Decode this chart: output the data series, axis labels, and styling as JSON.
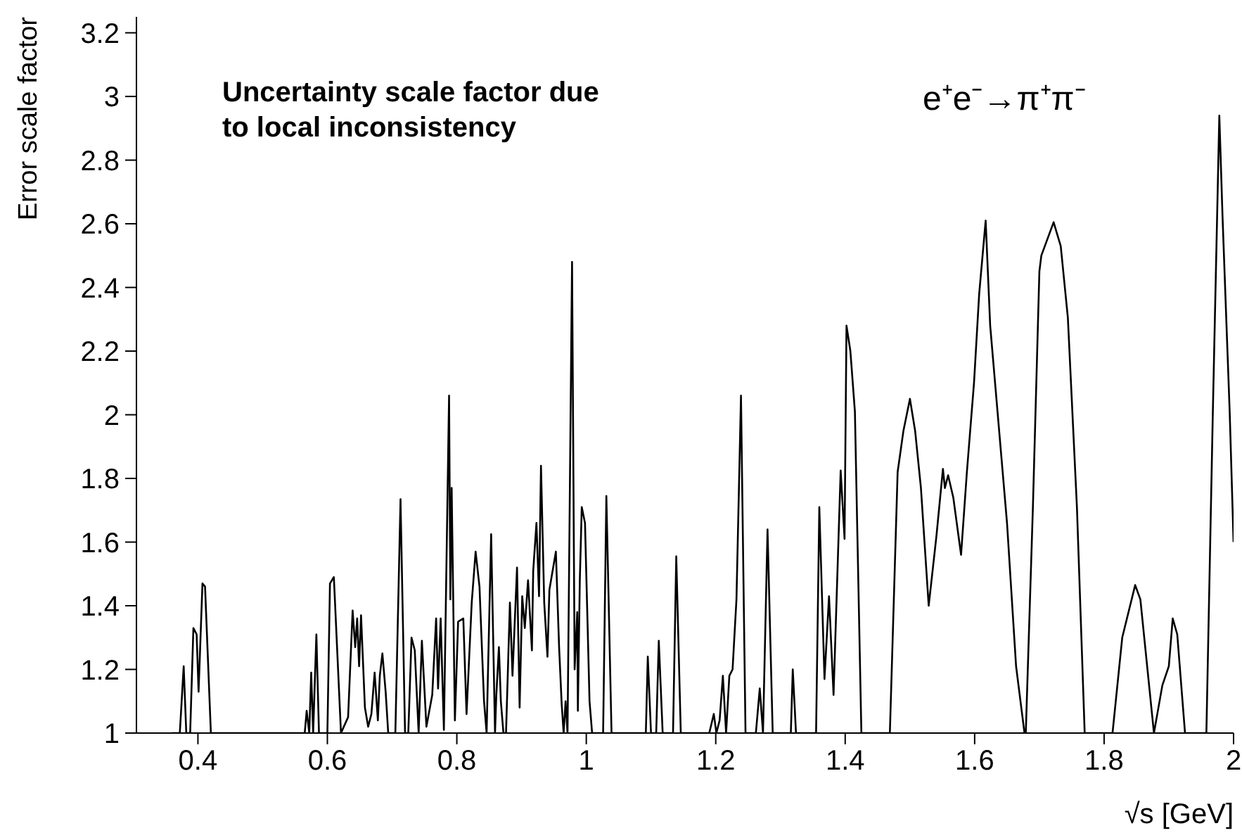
{
  "chart_data": {
    "type": "line",
    "xlabel": "√s   [GeV]",
    "ylabel": "Error scale factor",
    "annotations": [
      "Uncertainty scale factor due to local inconsistency",
      "e⁺e⁻→π⁺π⁻"
    ],
    "x": [
      0.36,
      0.372,
      0.378,
      0.382,
      0.388,
      0.393,
      0.398,
      0.401,
      0.407,
      0.411,
      0.42,
      0.565,
      0.568,
      0.572,
      0.575,
      0.578,
      0.583,
      0.587,
      0.6,
      0.604,
      0.61,
      0.621,
      0.632,
      0.639,
      0.643,
      0.646,
      0.649,
      0.652,
      0.658,
      0.663,
      0.668,
      0.673,
      0.678,
      0.681,
      0.685,
      0.69,
      0.694,
      0.705,
      0.713,
      0.72,
      0.725,
      0.73,
      0.735,
      0.741,
      0.746,
      0.753,
      0.762,
      0.768,
      0.771,
      0.775,
      0.78,
      0.788,
      0.79,
      0.792,
      0.797,
      0.802,
      0.81,
      0.815,
      0.823,
      0.829,
      0.835,
      0.842,
      0.846,
      0.853,
      0.859,
      0.861,
      0.865,
      0.868,
      0.872,
      0.876,
      0.882,
      0.886,
      0.893,
      0.897,
      0.901,
      0.905,
      0.91,
      0.916,
      0.918,
      0.923,
      0.927,
      0.93,
      0.935,
      0.94,
      0.943,
      0.948,
      0.953,
      0.958,
      0.962,
      0.965,
      0.968,
      0.971,
      0.978,
      0.982,
      0.986,
      0.987,
      0.99,
      0.993,
      0.998,
      1.005,
      1.009,
      1.026,
      1.031,
      1.039,
      1.092,
      1.095,
      1.1,
      1.108,
      1.112,
      1.118,
      1.134,
      1.139,
      1.146,
      1.19,
      1.197,
      1.201,
      1.206,
      1.211,
      1.216,
      1.221,
      1.226,
      1.232,
      1.239,
      1.246,
      1.262,
      1.268,
      1.273,
      1.28,
      1.288,
      1.316,
      1.319,
      1.324,
      1.355,
      1.36,
      1.368,
      1.375,
      1.382,
      1.393,
      1.399,
      1.402,
      1.408,
      1.415,
      1.425,
      1.469,
      1.481,
      1.49,
      1.5,
      1.508,
      1.517,
      1.529,
      1.541,
      1.551,
      1.554,
      1.559,
      1.567,
      1.579,
      1.588,
      1.599,
      1.607,
      1.617,
      1.624,
      1.65,
      1.664,
      1.677,
      1.679,
      1.69,
      1.7,
      1.703,
      1.722,
      1.733,
      1.744,
      1.758,
      1.77,
      1.813,
      1.828,
      1.848,
      1.856,
      1.877,
      1.89,
      1.9,
      1.906,
      1.913,
      1.925,
      1.958,
      1.968,
      1.978,
      1.983,
      1.994,
      2.0
    ],
    "series": [
      {
        "color": "#000000",
        "values": [
          1,
          1,
          1.21,
          1,
          1,
          1.33,
          1.31,
          1.13,
          1.47,
          1.46,
          1,
          1,
          1.07,
          1,
          1.19,
          1,
          1.31,
          1,
          1,
          1.47,
          1.49,
          1,
          1.05,
          1.385,
          1.27,
          1.36,
          1.21,
          1.37,
          1.08,
          1.02,
          1.06,
          1.19,
          1.04,
          1.18,
          1.25,
          1.13,
          1,
          1,
          1.735,
          1,
          1,
          1.3,
          1.26,
          1,
          1.29,
          1.02,
          1.12,
          1.36,
          1.14,
          1.36,
          1.01,
          2.06,
          1.42,
          1.77,
          1.04,
          1.35,
          1.36,
          1.06,
          1.41,
          1.57,
          1.46,
          1.1,
          1,
          1.625,
          1,
          1.12,
          1.27,
          1.1,
          1,
          1,
          1.41,
          1.18,
          1.52,
          1.08,
          1.43,
          1.33,
          1.48,
          1.26,
          1.51,
          1.66,
          1.43,
          1.84,
          1.41,
          1.24,
          1.45,
          1.51,
          1.57,
          1.27,
          1.09,
          1,
          1.1,
          1,
          2.48,
          1.2,
          1.38,
          1.07,
          1.48,
          1.71,
          1.66,
          1.1,
          1,
          1,
          1.745,
          1,
          1,
          1.24,
          1,
          1,
          1.29,
          1,
          1,
          1.555,
          1,
          1,
          1.06,
          1,
          1.04,
          1.18,
          1,
          1.18,
          1.2,
          1.42,
          2.06,
          1,
          1,
          1.14,
          1,
          1.64,
          1,
          1,
          1.2,
          1,
          1,
          1.71,
          1.17,
          1.43,
          1.12,
          1.825,
          1.61,
          2.28,
          2.2,
          2.01,
          1,
          1,
          1.82,
          1.95,
          2.05,
          1.95,
          1.77,
          1.4,
          1.62,
          1.83,
          1.77,
          1.81,
          1.74,
          1.56,
          1.82,
          2.1,
          2.38,
          2.61,
          2.28,
          1.66,
          1.21,
          1,
          1,
          1.71,
          2.45,
          2.5,
          2.605,
          2.53,
          2.305,
          1.71,
          1,
          1,
          1.3,
          1.465,
          1.42,
          1,
          1.15,
          1.21,
          1.36,
          1.31,
          1,
          1,
          2.01,
          2.94,
          2.62,
          2.01,
          1.6
        ]
      }
    ],
    "xlim": [
      0.305,
      2.0
    ],
    "xticks": [
      0.4,
      0.6,
      0.8,
      1,
      1.2,
      1.4,
      1.6,
      1.8,
      2
    ],
    "ylim": [
      1,
      3.25
    ],
    "yticks": [
      1,
      1.2,
      1.4,
      1.6,
      1.8,
      2,
      2.2,
      2.4,
      2.6,
      2.8,
      3,
      3.2
    ],
    "grid": false,
    "legend": false,
    "marker": "none",
    "line_style": "solid"
  }
}
